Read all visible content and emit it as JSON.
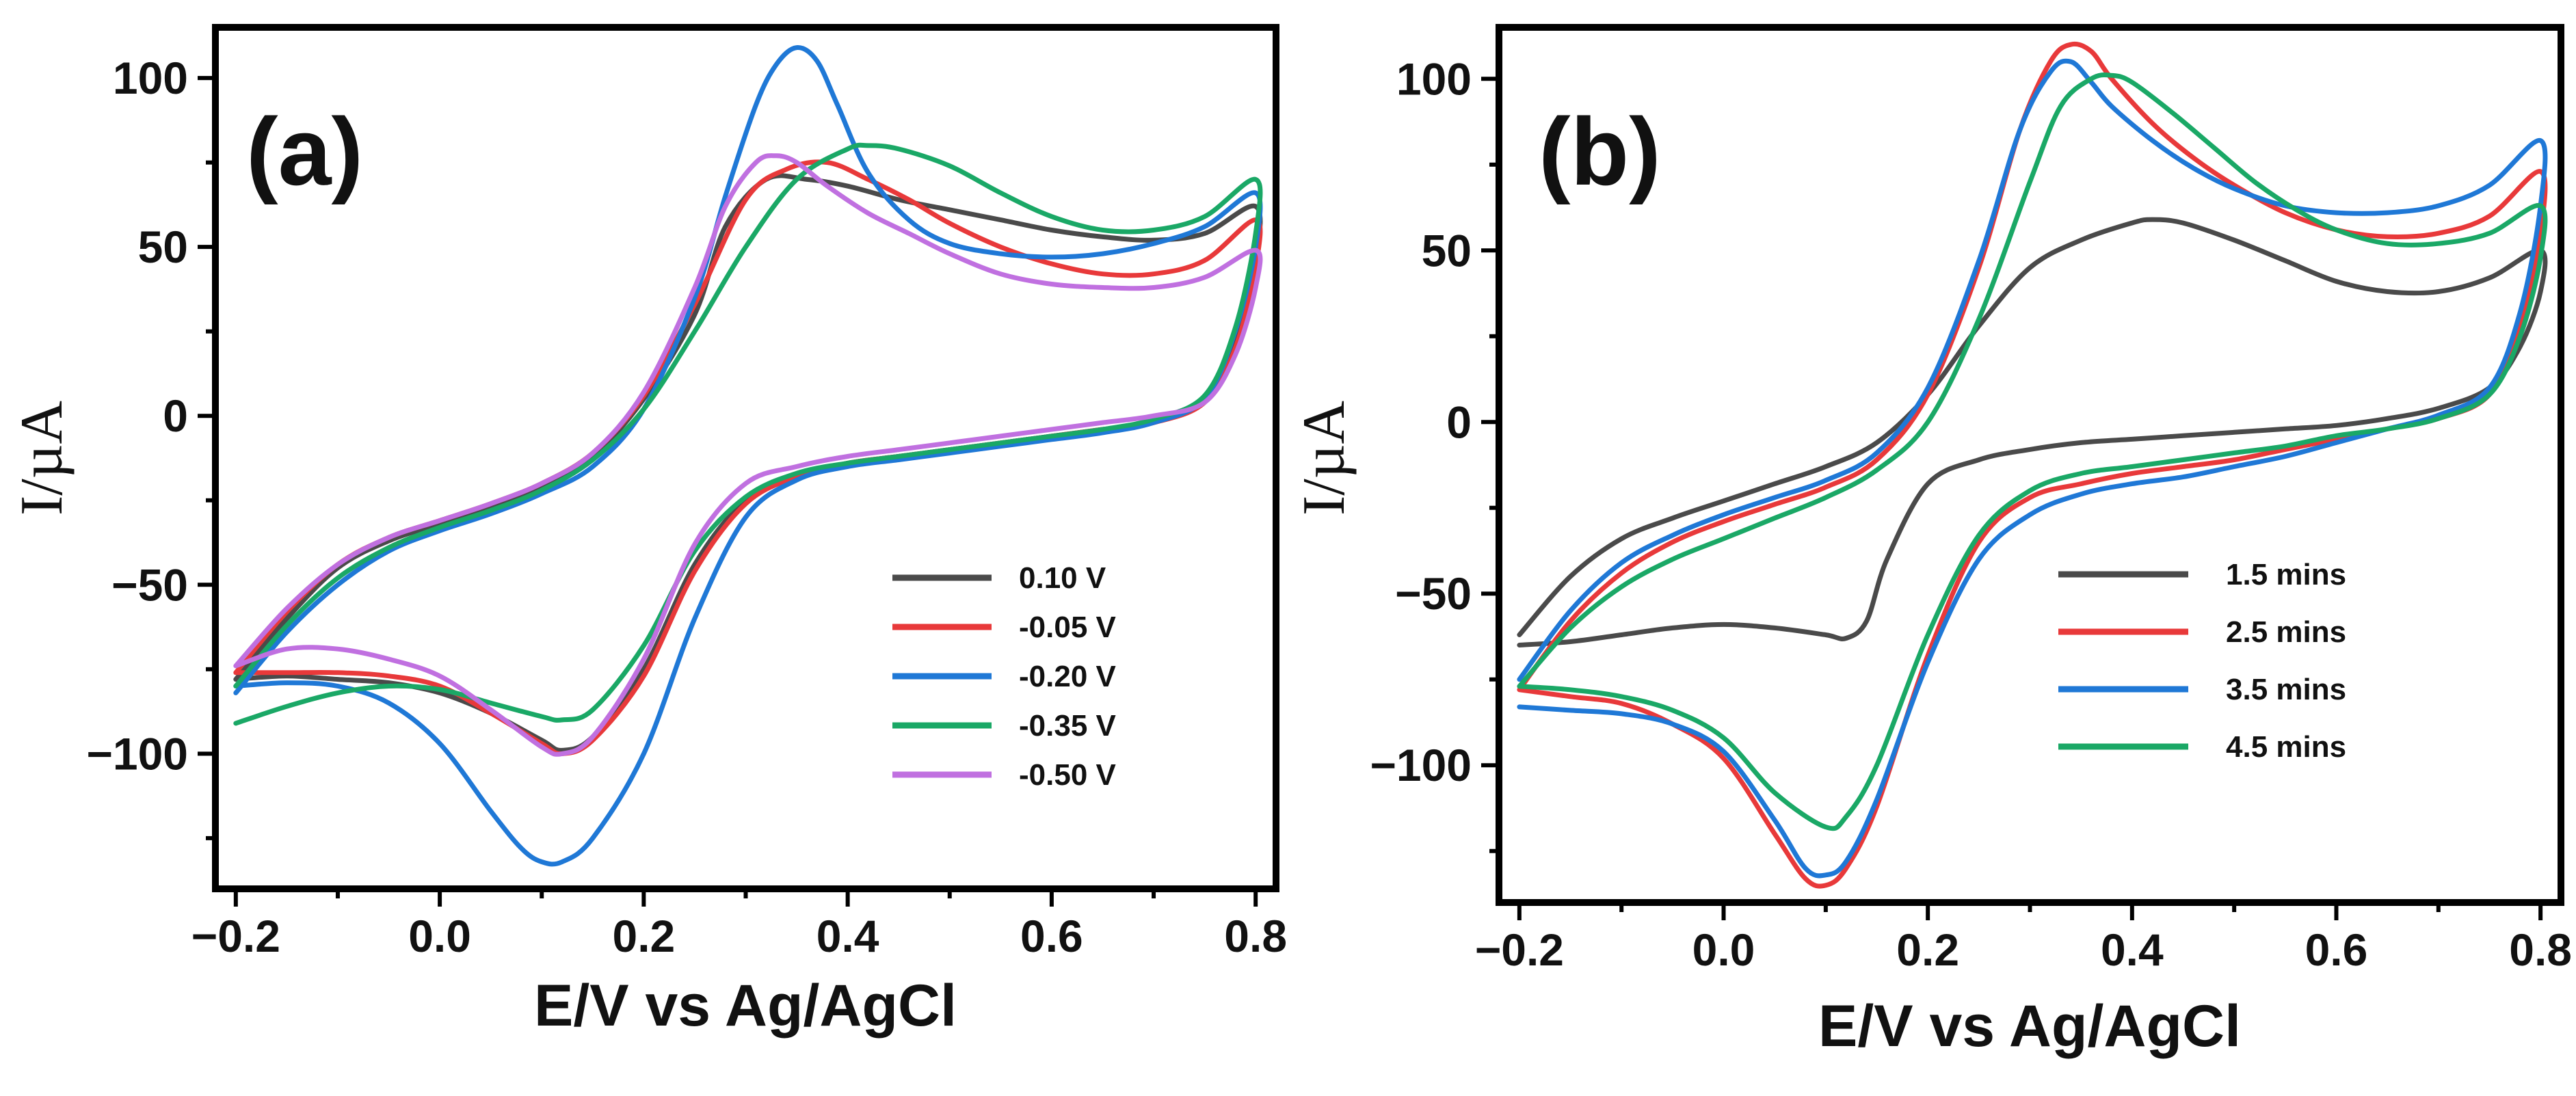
{
  "chart_data": [
    {
      "type": "line",
      "panel_label": "(a)",
      "xlabel": "E/V vs Ag/AgCl",
      "ylabel": "I/µA",
      "xlim": [
        -0.22,
        0.82
      ],
      "ylim": [
        -140,
        115
      ],
      "x_ticks": [
        -0.2,
        0.0,
        0.2,
        0.4,
        0.6,
        0.8
      ],
      "x_tick_labels": [
        "−0.2",
        "0.0",
        "0.2",
        "0.4",
        "0.6",
        "0.8"
      ],
      "y_ticks": [
        -100,
        -50,
        0,
        50,
        100
      ],
      "y_tick_labels": [
        "−100",
        "−50",
        "0",
        "50",
        "100"
      ],
      "legend_position": "lower-right",
      "series": [
        {
          "name": "0.10 V",
          "color": "#4a4a4a",
          "x": [
            -0.2,
            -0.15,
            -0.1,
            -0.05,
            0.0,
            0.05,
            0.1,
            0.15,
            0.2,
            0.25,
            0.28,
            0.32,
            0.36,
            0.4,
            0.45,
            0.5,
            0.55,
            0.6,
            0.65,
            0.7,
            0.75,
            0.8,
            0.8,
            0.78,
            0.75,
            0.7,
            0.65,
            0.6,
            0.55,
            0.5,
            0.45,
            0.4,
            0.35,
            0.3,
            0.25,
            0.2,
            0.15,
            0.12,
            0.1,
            0.05,
            0.0,
            -0.05,
            -0.1,
            -0.15,
            -0.2
          ],
          "y": [
            -78,
            -60,
            -45,
            -37,
            -32,
            -27,
            -21,
            -12,
            5,
            30,
            56,
            70,
            70,
            68,
            64,
            61,
            58,
            55,
            53,
            52,
            54,
            62,
            46,
            22,
            5,
            -2,
            -4,
            -6,
            -8,
            -10,
            -12,
            -14,
            -18,
            -25,
            -44,
            -75,
            -95,
            -99,
            -96,
            -88,
            -82,
            -79,
            -78,
            -77,
            -78
          ]
        },
        {
          "name": "-0.05 V",
          "color": "#e8393a",
          "x": [
            -0.2,
            -0.15,
            -0.1,
            -0.05,
            0.0,
            0.05,
            0.1,
            0.15,
            0.2,
            0.25,
            0.3,
            0.34,
            0.38,
            0.42,
            0.46,
            0.5,
            0.55,
            0.6,
            0.65,
            0.7,
            0.75,
            0.8,
            0.8,
            0.78,
            0.75,
            0.7,
            0.65,
            0.6,
            0.55,
            0.5,
            0.45,
            0.4,
            0.35,
            0.3,
            0.25,
            0.2,
            0.15,
            0.12,
            0.1,
            0.05,
            0.0,
            -0.05,
            -0.1,
            -0.15,
            -0.2
          ],
          "y": [
            -76,
            -58,
            -44,
            -36,
            -31,
            -26,
            -20,
            -11,
            6,
            33,
            64,
            73,
            75,
            70,
            64,
            57,
            50,
            45,
            42,
            42,
            46,
            58,
            44,
            20,
            4,
            -2,
            -4,
            -6,
            -8,
            -10,
            -12,
            -14,
            -18,
            -26,
            -46,
            -77,
            -96,
            -100,
            -97,
            -88,
            -80,
            -77,
            -76,
            -76,
            -76
          ]
        },
        {
          "name": "-0.20 V",
          "color": "#1f78d6",
          "x": [
            -0.2,
            -0.15,
            -0.1,
            -0.05,
            0.0,
            0.05,
            0.1,
            0.15,
            0.2,
            0.25,
            0.28,
            0.31,
            0.33,
            0.35,
            0.37,
            0.39,
            0.42,
            0.46,
            0.5,
            0.55,
            0.6,
            0.65,
            0.7,
            0.75,
            0.8,
            0.8,
            0.78,
            0.75,
            0.7,
            0.65,
            0.6,
            0.55,
            0.5,
            0.45,
            0.4,
            0.35,
            0.3,
            0.25,
            0.2,
            0.15,
            0.12,
            0.1,
            0.08,
            0.05,
            0.0,
            -0.05,
            -0.1,
            -0.15,
            -0.2
          ],
          "y": [
            -82,
            -64,
            -50,
            -40,
            -34,
            -29,
            -23,
            -15,
            2,
            35,
            65,
            92,
            104,
            109,
            105,
            92,
            72,
            58,
            51,
            48,
            47,
            48,
            51,
            56,
            66,
            50,
            25,
            5,
            -2,
            -5,
            -7,
            -9,
            -11,
            -13,
            -15,
            -19,
            -30,
            -60,
            -100,
            -125,
            -132,
            -132,
            -128,
            -117,
            -97,
            -85,
            -80,
            -79,
            -80
          ]
        },
        {
          "name": "-0.35 V",
          "color": "#1aa866",
          "x": [
            -0.2,
            -0.15,
            -0.1,
            -0.05,
            0.0,
            0.05,
            0.1,
            0.15,
            0.2,
            0.25,
            0.3,
            0.35,
            0.4,
            0.42,
            0.45,
            0.5,
            0.55,
            0.6,
            0.65,
            0.7,
            0.75,
            0.8,
            0.8,
            0.78,
            0.75,
            0.7,
            0.65,
            0.6,
            0.55,
            0.5,
            0.45,
            0.4,
            0.35,
            0.3,
            0.25,
            0.2,
            0.15,
            0.12,
            0.1,
            0.05,
            0.0,
            -0.05,
            -0.1,
            -0.15,
            -0.2
          ],
          "y": [
            -80,
            -62,
            -48,
            -39,
            -33,
            -28,
            -22,
            -13,
            2,
            25,
            50,
            70,
            79,
            80,
            79,
            74,
            66,
            59,
            55,
            55,
            59,
            70,
            54,
            26,
            6,
            -1,
            -4,
            -6,
            -8,
            -10,
            -12,
            -14,
            -17,
            -24,
            -40,
            -68,
            -87,
            -90,
            -89,
            -85,
            -81,
            -80,
            -82,
            -86,
            -91
          ]
        },
        {
          "name": "-0.50 V",
          "color": "#c070e0",
          "x": [
            -0.2,
            -0.15,
            -0.1,
            -0.05,
            0.0,
            0.05,
            0.1,
            0.15,
            0.2,
            0.25,
            0.28,
            0.31,
            0.33,
            0.35,
            0.38,
            0.42,
            0.46,
            0.5,
            0.55,
            0.6,
            0.65,
            0.7,
            0.75,
            0.8,
            0.8,
            0.78,
            0.75,
            0.7,
            0.65,
            0.6,
            0.55,
            0.5,
            0.45,
            0.4,
            0.35,
            0.3,
            0.25,
            0.2,
            0.15,
            0.12,
            0.1,
            0.05,
            0.0,
            -0.05,
            -0.1,
            -0.15,
            -0.2
          ],
          "y": [
            -74,
            -57,
            -44,
            -36,
            -31,
            -26,
            -20,
            -11,
            7,
            38,
            62,
            75,
            77,
            75,
            68,
            60,
            54,
            48,
            42,
            39,
            38,
            38,
            41,
            49,
            38,
            18,
            4,
            0,
            -2,
            -4,
            -6,
            -8,
            -10,
            -12,
            -15,
            -20,
            -38,
            -72,
            -95,
            -100,
            -98,
            -87,
            -77,
            -72,
            -69,
            -69,
            -74
          ]
        }
      ],
      "annotations": []
    },
    {
      "type": "line",
      "panel_label": "(b)",
      "xlabel": "E/V vs Ag/AgCl",
      "ylabel": "I/µA",
      "xlim": [
        -0.22,
        0.82
      ],
      "ylim": [
        -140,
        115
      ],
      "x_ticks": [
        -0.2,
        0.0,
        0.2,
        0.4,
        0.6,
        0.8
      ],
      "x_tick_labels": [
        "−0.2",
        "0.0",
        "0.2",
        "0.4",
        "0.6",
        "0.8"
      ],
      "y_ticks": [
        -100,
        -50,
        0,
        50,
        100
      ],
      "y_tick_labels": [
        "−100",
        "−50",
        "0",
        "50",
        "100"
      ],
      "legend_position": "lower-left",
      "series": [
        {
          "name": "1.5 mins",
          "color": "#4a4a4a",
          "x": [
            -0.2,
            -0.15,
            -0.1,
            -0.05,
            0.0,
            0.05,
            0.1,
            0.15,
            0.2,
            0.25,
            0.3,
            0.35,
            0.4,
            0.42,
            0.45,
            0.5,
            0.55,
            0.6,
            0.65,
            0.7,
            0.75,
            0.8,
            0.8,
            0.78,
            0.75,
            0.7,
            0.65,
            0.6,
            0.55,
            0.5,
            0.45,
            0.4,
            0.35,
            0.3,
            0.25,
            0.2,
            0.16,
            0.14,
            0.12,
            0.1,
            0.05,
            0.0,
            -0.05,
            -0.1,
            -0.15,
            -0.2
          ],
          "y": [
            -62,
            -45,
            -34,
            -28,
            -23,
            -18,
            -13,
            -6,
            8,
            28,
            45,
            53,
            58,
            59,
            58,
            53,
            47,
            41,
            38,
            38,
            42,
            50,
            38,
            22,
            10,
            4,
            1,
            -1,
            -2,
            -3,
            -4,
            -5,
            -6,
            -8,
            -11,
            -18,
            -40,
            -58,
            -63,
            -62,
            -60,
            -59,
            -60,
            -62,
            -64,
            -65
          ]
        },
        {
          "name": "2.5 mins",
          "color": "#e8393a",
          "x": [
            -0.2,
            -0.15,
            -0.1,
            -0.05,
            0.0,
            0.05,
            0.1,
            0.15,
            0.2,
            0.25,
            0.29,
            0.32,
            0.34,
            0.36,
            0.38,
            0.42,
            0.46,
            0.5,
            0.55,
            0.6,
            0.65,
            0.7,
            0.75,
            0.8,
            0.8,
            0.78,
            0.75,
            0.7,
            0.65,
            0.6,
            0.55,
            0.5,
            0.45,
            0.4,
            0.35,
            0.3,
            0.25,
            0.2,
            0.15,
            0.12,
            0.1,
            0.08,
            0.05,
            0.0,
            -0.05,
            -0.1,
            -0.15,
            -0.2
          ],
          "y": [
            -78,
            -58,
            -44,
            -35,
            -29,
            -24,
            -19,
            -11,
            8,
            45,
            85,
            105,
            110,
            108,
            100,
            87,
            77,
            69,
            61,
            56,
            54,
            55,
            60,
            73,
            55,
            28,
            8,
            1,
            -2,
            -5,
            -8,
            -11,
            -13,
            -15,
            -18,
            -22,
            -35,
            -68,
            -112,
            -130,
            -135,
            -133,
            -120,
            -98,
            -88,
            -82,
            -80,
            -78
          ]
        },
        {
          "name": "3.5 mins",
          "color": "#1f78d6",
          "x": [
            -0.2,
            -0.15,
            -0.1,
            -0.05,
            0.0,
            0.05,
            0.1,
            0.15,
            0.2,
            0.25,
            0.29,
            0.32,
            0.34,
            0.36,
            0.38,
            0.42,
            0.46,
            0.5,
            0.55,
            0.6,
            0.65,
            0.7,
            0.75,
            0.8,
            0.8,
            0.78,
            0.75,
            0.7,
            0.65,
            0.6,
            0.55,
            0.5,
            0.45,
            0.4,
            0.35,
            0.3,
            0.25,
            0.2,
            0.15,
            0.12,
            0.1,
            0.08,
            0.05,
            0.0,
            -0.05,
            -0.1,
            -0.15,
            -0.2
          ],
          "y": [
            -75,
            -55,
            -41,
            -33,
            -27,
            -22,
            -17,
            -9,
            10,
            47,
            85,
            102,
            105,
            99,
            92,
            82,
            74,
            68,
            63,
            61,
            61,
            63,
            69,
            82,
            63,
            32,
            10,
            2,
            -2,
            -6,
            -10,
            -13,
            -16,
            -18,
            -21,
            -27,
            -40,
            -70,
            -110,
            -128,
            -132,
            -130,
            -116,
            -96,
            -88,
            -85,
            -84,
            -83
          ]
        },
        {
          "name": "4.5 mins",
          "color": "#1aa866",
          "x": [
            -0.2,
            -0.15,
            -0.1,
            -0.05,
            0.0,
            0.05,
            0.1,
            0.15,
            0.2,
            0.25,
            0.3,
            0.33,
            0.36,
            0.38,
            0.4,
            0.44,
            0.48,
            0.52,
            0.56,
            0.6,
            0.65,
            0.7,
            0.75,
            0.8,
            0.8,
            0.78,
            0.75,
            0.7,
            0.65,
            0.6,
            0.55,
            0.5,
            0.45,
            0.4,
            0.35,
            0.3,
            0.25,
            0.2,
            0.15,
            0.12,
            0.1,
            0.05,
            0.0,
            -0.05,
            -0.1,
            -0.15,
            -0.2
          ],
          "y": [
            -77,
            -60,
            -48,
            -40,
            -34,
            -28,
            -22,
            -14,
            0,
            30,
            70,
            92,
            100,
            101,
            99,
            90,
            80,
            70,
            62,
            56,
            52,
            52,
            55,
            63,
            48,
            25,
            8,
            1,
            -2,
            -4,
            -7,
            -9,
            -11,
            -13,
            -15,
            -20,
            -33,
            -62,
            -100,
            -115,
            -118,
            -108,
            -92,
            -84,
            -80,
            -78,
            -77
          ]
        }
      ],
      "annotations": []
    }
  ]
}
